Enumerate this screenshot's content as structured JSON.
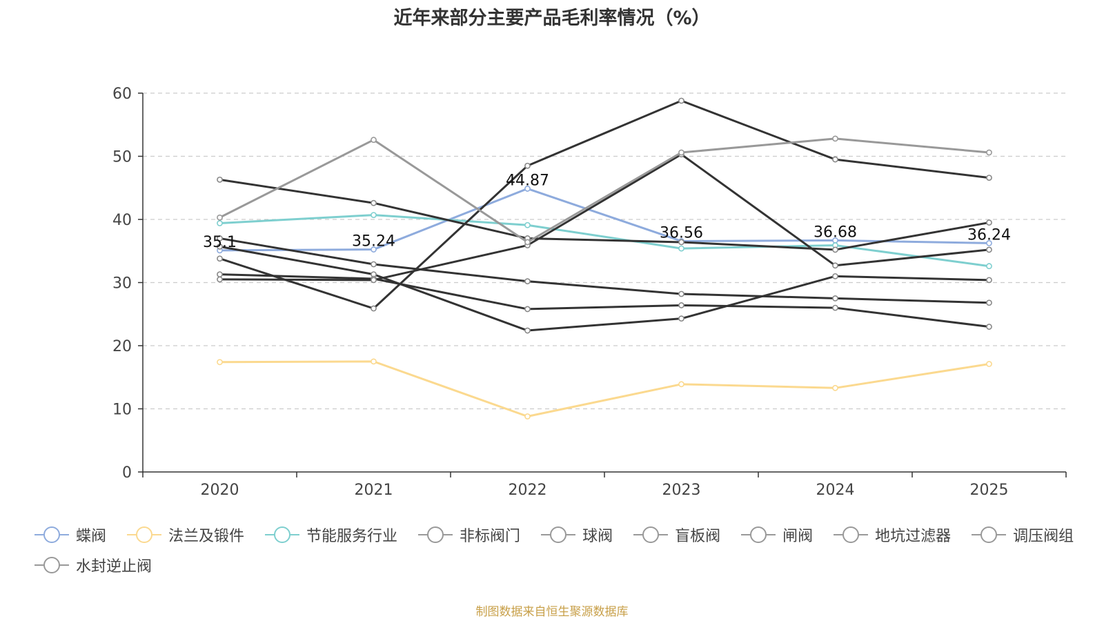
{
  "chart_data": {
    "type": "line",
    "title": "近年来部分主要产品毛利率情况（%）",
    "xlabel": "",
    "ylabel": "",
    "ylim": [
      0,
      60
    ],
    "y_ticks": [
      0,
      10,
      20,
      30,
      40,
      50,
      60
    ],
    "categories": [
      "2020",
      "2021",
      "2022",
      "2023",
      "2024",
      "2025"
    ],
    "grid": true,
    "legend_position": "bottom",
    "series": [
      {
        "name": "蝶阀",
        "color": "#8eabdd",
        "values": [
          35.1,
          35.24,
          44.87,
          36.56,
          36.68,
          36.24
        ],
        "labels": [
          "35.1",
          "35.24",
          "44.87",
          "36.56",
          "36.68",
          "36.24"
        ]
      },
      {
        "name": "法兰及锻件",
        "color": "#fbd98f",
        "values": [
          17.4,
          17.5,
          8.8,
          13.9,
          13.3,
          17.1
        ]
      },
      {
        "name": "节能服务行业",
        "color": "#7ecfcf",
        "values": [
          39.4,
          40.7,
          39.1,
          35.4,
          35.9,
          32.6
        ]
      },
      {
        "name": "非标阀门",
        "color": "#333333",
        "values": [
          46.3,
          42.6,
          37.0,
          36.4,
          35.2,
          39.5
        ]
      },
      {
        "name": "球阀",
        "color": "#333333",
        "values": [
          37.0,
          32.9,
          30.2,
          28.2,
          27.5,
          26.8
        ]
      },
      {
        "name": "盲板阀",
        "color": "#333333",
        "values": [
          35.7,
          31.3,
          22.4,
          24.3,
          31.0,
          30.4
        ]
      },
      {
        "name": "闸阀",
        "color": "#333333",
        "values": [
          31.3,
          30.6,
          25.8,
          26.4,
          26.0,
          23.0
        ]
      },
      {
        "name": "地坑过滤器",
        "color": "#333333",
        "values": [
          33.8,
          25.9,
          48.5,
          58.8,
          49.5,
          46.6
        ]
      },
      {
        "name": "调压阀组",
        "color": "#333333",
        "values": [
          30.5,
          30.4,
          35.9,
          50.3,
          32.7,
          35.2
        ]
      },
      {
        "name": "水封逆止阀",
        "color": "#999999",
        "values": [
          40.3,
          52.6,
          36.4,
          50.6,
          52.8,
          50.6
        ]
      }
    ]
  },
  "footer": {
    "source": "制图数据来自恒生聚源数据库"
  }
}
